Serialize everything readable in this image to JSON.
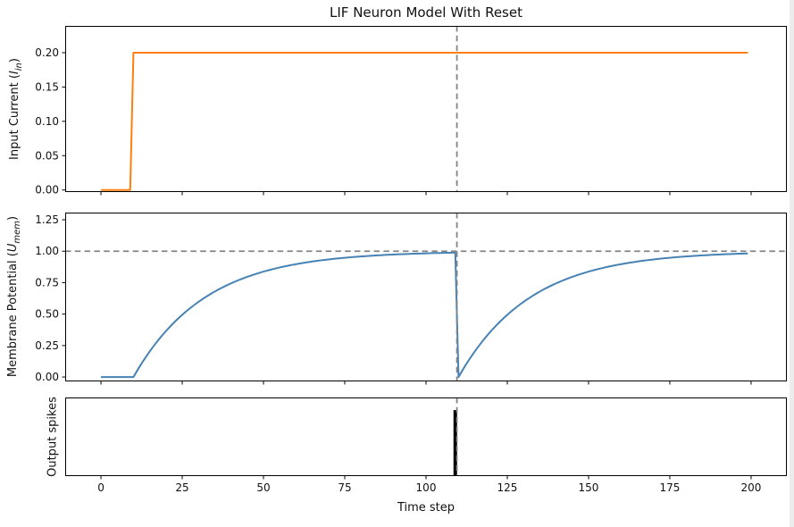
{
  "figure": {
    "title": "LIF Neuron Model With Reset",
    "xlabel": "Time step",
    "background": "#ffffff"
  },
  "labels": {
    "ax1": {
      "prefix": "Input Current (",
      "symbol": "I",
      "subscript": "in",
      "suffix": ")"
    },
    "ax2": {
      "prefix": "Membrane Potential (",
      "symbol": "U",
      "subscript": "mem",
      "suffix": ")"
    },
    "ax3": {
      "text": "Output spikes"
    }
  },
  "style": {
    "orange": "#ff7f0e",
    "blue": "#4682b4",
    "spike_black": "#000000",
    "ref_gray": "#848484",
    "spine": "#000000"
  },
  "ref_style": {
    "color": "#848484",
    "dash": "6.5 4.3",
    "width": 1.8
  },
  "x_axis": {
    "label": "Time step",
    "xlim": [
      -11,
      211
    ],
    "ticks": [
      0,
      25,
      50,
      75,
      100,
      125,
      150,
      175,
      200
    ],
    "tick_labels": [
      "0",
      "25",
      "50",
      "75",
      "100",
      "125",
      "150",
      "175",
      "200"
    ]
  },
  "chart_data": [
    {
      "id": "input-current",
      "type": "line",
      "ylabel": "Input Current (I_in)",
      "color": "#ff7f0e",
      "linewidth": 2,
      "ylim": [
        -0.003,
        0.239
      ],
      "yticks": [
        {
          "v": 0.0,
          "label": "0.00"
        },
        {
          "v": 0.05,
          "label": "0.05"
        },
        {
          "v": 0.1,
          "label": "0.10"
        },
        {
          "v": 0.15,
          "label": "0.15"
        },
        {
          "v": 0.2,
          "label": "0.20"
        }
      ],
      "segments": [
        {
          "type": "const",
          "t": [
            0,
            9
          ],
          "value": 0
        },
        {
          "type": "const",
          "t": [
            10,
            199
          ],
          "value": 0.2
        }
      ],
      "key_points": [
        [
          0,
          0
        ],
        [
          9,
          0
        ],
        [
          10,
          0.2
        ],
        [
          199,
          0.2
        ]
      ],
      "ref_lines": [
        {
          "orient": "v",
          "x": 109.5
        }
      ]
    },
    {
      "id": "membrane-potential",
      "type": "line",
      "ylabel": "Membrane Potential (U_mem)",
      "color": "#4682b4",
      "linewidth": 2,
      "ylim": [
        -0.035,
        1.307
      ],
      "yticks": [
        {
          "v": 0.0,
          "label": "0.00"
        },
        {
          "v": 0.25,
          "label": "0.25"
        },
        {
          "v": 0.5,
          "label": "0.50"
        },
        {
          "v": 0.75,
          "label": "0.75"
        },
        {
          "v": 1.0,
          "label": "1.00"
        },
        {
          "v": 1.25,
          "label": "1.25"
        }
      ],
      "threshold": 1.0,
      "reset_time": 109,
      "segments": [
        {
          "type": "const",
          "t": [
            0,
            9
          ],
          "value": 0
        },
        {
          "type": "exp_rise",
          "t": [
            10,
            109
          ],
          "t0": 10,
          "tau": 22,
          "asymptote": 1.0
        },
        {
          "type": "exp_rise",
          "t": [
            110,
            199
          ],
          "t0": 110,
          "tau": 22,
          "asymptote": 1.0
        }
      ],
      "samples": [
        [
          0,
          0
        ],
        [
          10,
          0
        ],
        [
          20,
          0.37
        ],
        [
          30,
          0.6
        ],
        [
          40,
          0.74
        ],
        [
          50,
          0.84
        ],
        [
          60,
          0.9
        ],
        [
          70,
          0.94
        ],
        [
          80,
          0.96
        ],
        [
          90,
          0.97
        ],
        [
          100,
          0.98
        ],
        [
          109,
          0.99
        ],
        [
          110,
          0
        ],
        [
          120,
          0.37
        ],
        [
          130,
          0.6
        ],
        [
          140,
          0.74
        ],
        [
          150,
          0.84
        ],
        [
          160,
          0.9
        ],
        [
          170,
          0.94
        ],
        [
          180,
          0.96
        ],
        [
          190,
          0.97
        ],
        [
          199,
          0.98
        ]
      ],
      "ref_lines": [
        {
          "orient": "h",
          "y": 1.0
        },
        {
          "orient": "v",
          "x": 109.5
        }
      ]
    },
    {
      "id": "output-spikes",
      "type": "event",
      "ylabel": "Output spikes",
      "color": "#000000",
      "ylim": [
        0,
        1
      ],
      "yticks": [],
      "events": [
        109
      ],
      "event_height_frac": 0.84,
      "event_width": 4,
      "ref_lines": [
        {
          "orient": "v",
          "x": 109.5
        }
      ]
    }
  ]
}
